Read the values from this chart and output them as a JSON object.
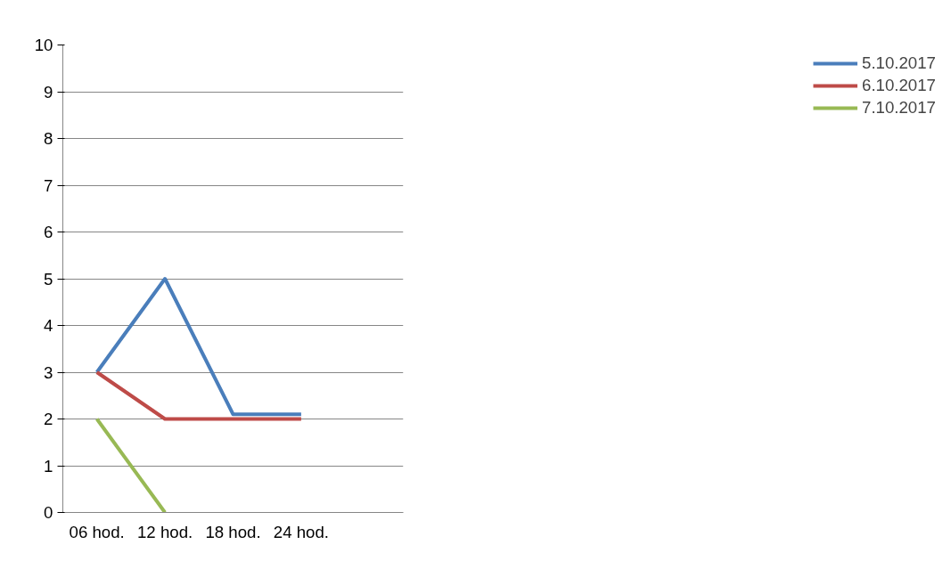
{
  "chart_data": {
    "type": "line",
    "categories": [
      "06 hod.",
      "12 hod.",
      "18 hod.",
      "24 hod.",
      null
    ],
    "series": [
      {
        "name": "5.10.2017",
        "color": "#4a7ebb",
        "values": [
          3,
          5,
          2.1,
          2.1,
          null
        ]
      },
      {
        "name": "6.10.2017",
        "color": "#be4b48",
        "values": [
          3,
          2,
          2,
          2,
          null
        ]
      },
      {
        "name": "7.10.2017",
        "color": "#98b954",
        "values": [
          2,
          0,
          null,
          null,
          null
        ]
      }
    ],
    "ylim": [
      0,
      10
    ],
    "yticks": [
      0,
      1,
      2,
      3,
      4,
      5,
      6,
      7,
      8,
      9,
      10
    ],
    "grid": "y",
    "legend": "right",
    "marker": "none",
    "line_style": "solid"
  }
}
